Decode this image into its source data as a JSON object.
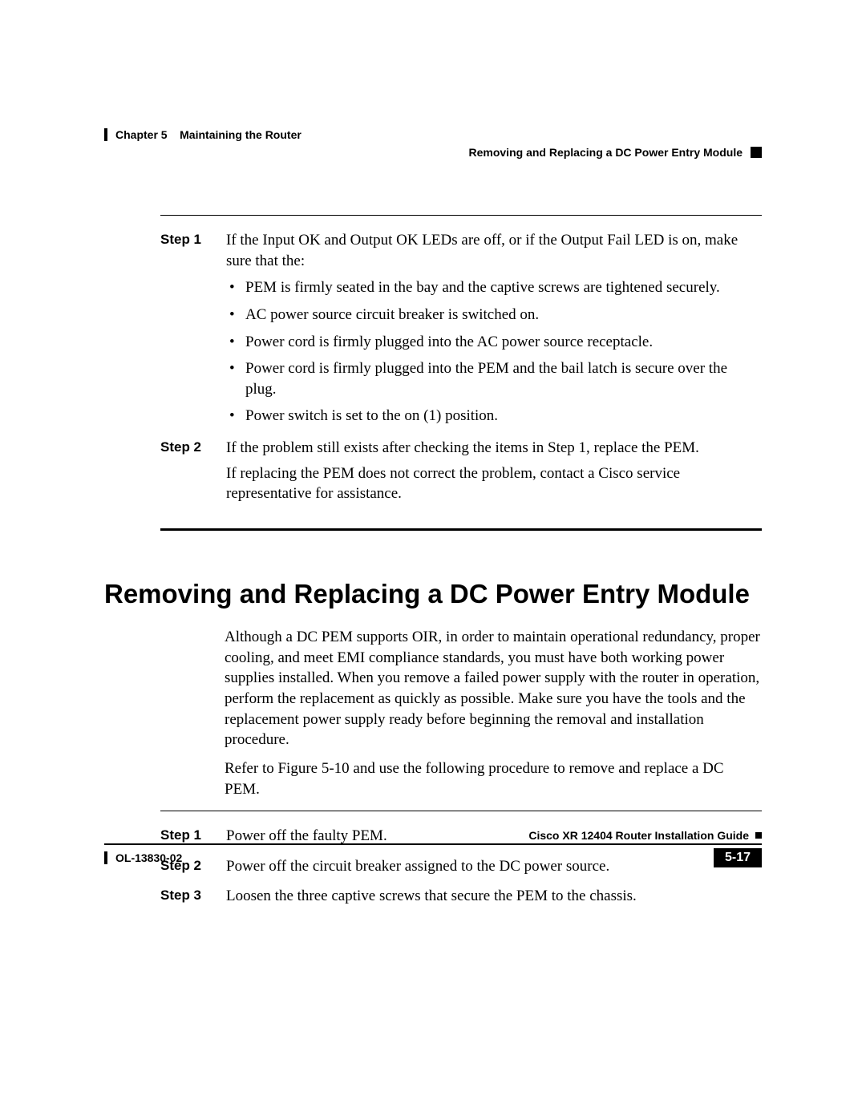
{
  "header": {
    "chapter_label": "Chapter 5",
    "chapter_title": "Maintaining the Router",
    "section_title": "Removing and Replacing a DC Power Entry Module"
  },
  "steps_a": [
    {
      "label": "Step 1",
      "intro": "If the Input OK and Output OK LEDs are off, or if the Output Fail LED is on, make sure that the:",
      "bullets": [
        "PEM is firmly seated in the bay and the captive screws are tightened securely.",
        "AC power source circuit breaker is switched on.",
        "Power cord is firmly plugged into the AC power source receptacle.",
        "Power cord is firmly plugged into the PEM and the bail latch is secure over the plug.",
        "Power switch is set to the on (1) position."
      ]
    },
    {
      "label": "Step 2",
      "intro": "If the problem still exists after checking the items in Step 1, replace the PEM.",
      "extra": "If replacing the PEM does not correct the problem, contact a Cisco service representative for assistance."
    }
  ],
  "section": {
    "heading": "Removing and Replacing a DC Power Entry Module",
    "para1": "Although a DC PEM supports OIR, in order to maintain operational redundancy, proper cooling, and meet EMI compliance standards, you must have both working power supplies installed. When you remove a failed power supply with the router in operation, perform the replacement as quickly as possible. Make sure you have the tools and the replacement power supply ready before beginning the removal and installation procedure.",
    "para2": "Refer to Figure 5-10 and use the following procedure to remove and replace a DC PEM."
  },
  "steps_b": [
    {
      "label": "Step 1",
      "text": "Power off the faulty PEM."
    },
    {
      "label": "Step 2",
      "text": "Power off the circuit breaker assigned to the DC power source."
    },
    {
      "label": "Step 3",
      "text": "Loosen the three captive screws that secure the PEM to the chassis."
    }
  ],
  "footer": {
    "guide_title": "Cisco XR 12404 Router Installation Guide",
    "doc_id": "OL-13830-02",
    "page_number": "5-17"
  }
}
